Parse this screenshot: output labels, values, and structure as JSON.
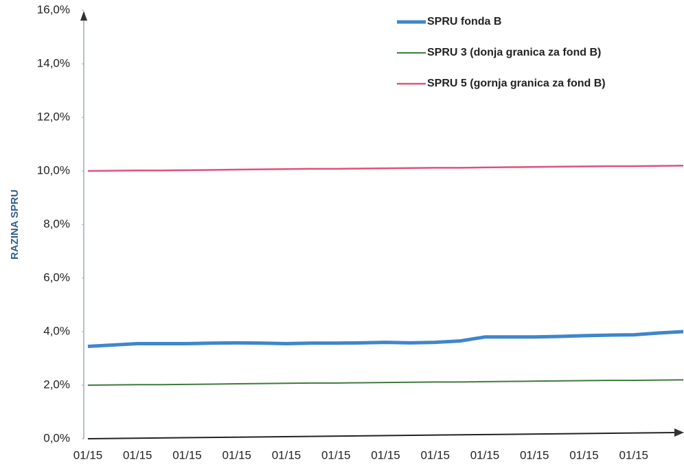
{
  "chart_data": {
    "type": "line",
    "y_label": "RAZINA SPRU",
    "categories": [
      "01/15",
      null,
      "01/15",
      null,
      "01/15",
      null,
      "01/15",
      null,
      "01/15",
      null,
      "01/15",
      null,
      "01/15",
      null,
      "01/15",
      null,
      "01/15",
      null,
      "01/15",
      null,
      "01/15",
      null,
      "01/15",
      null,
      null
    ],
    "series": [
      {
        "name": "SPRU fonda B",
        "color": "#3f86cc",
        "width": 5,
        "values": [
          3.45,
          3.5,
          3.55,
          3.55,
          3.55,
          3.57,
          3.58,
          3.57,
          3.55,
          3.57,
          3.57,
          3.58,
          3.6,
          3.58,
          3.6,
          3.65,
          3.8,
          3.8,
          3.8,
          3.82,
          3.85,
          3.87,
          3.88,
          3.95,
          4.0
        ]
      },
      {
        "name": "SPRU 3 (donja granica za fond B)",
        "color": "#3d7a3a",
        "width": 2,
        "values": [
          2.0,
          2.01,
          2.02,
          2.02,
          2.03,
          2.04,
          2.05,
          2.06,
          2.07,
          2.08,
          2.08,
          2.09,
          2.1,
          2.11,
          2.12,
          2.12,
          2.13,
          2.14,
          2.15,
          2.16,
          2.17,
          2.18,
          2.18,
          2.19,
          2.2
        ]
      },
      {
        "name": "SPRU 5 (gornja granica za fond B)",
        "color": "#e0507a",
        "width": 2.5,
        "values": [
          10.0,
          10.01,
          10.02,
          10.02,
          10.03,
          10.04,
          10.05,
          10.06,
          10.07,
          10.08,
          10.08,
          10.09,
          10.1,
          10.11,
          10.12,
          10.12,
          10.13,
          10.14,
          10.15,
          10.16,
          10.17,
          10.18,
          10.18,
          10.19,
          10.2
        ]
      }
    ],
    "ylim": [
      0,
      16
    ],
    "yticks": [
      {
        "value": 0,
        "label": "0,0%"
      },
      {
        "value": 2,
        "label": "2,0%"
      },
      {
        "value": 4,
        "label": "4,0%"
      },
      {
        "value": 6,
        "label": "6,0%"
      },
      {
        "value": 8,
        "label": "8,0%"
      },
      {
        "value": 10,
        "label": "10,0%"
      },
      {
        "value": 12,
        "label": "12,0%"
      },
      {
        "value": 14,
        "label": "14,0%"
      },
      {
        "value": 16,
        "label": "16,0%"
      }
    ],
    "legend": "top-right"
  }
}
